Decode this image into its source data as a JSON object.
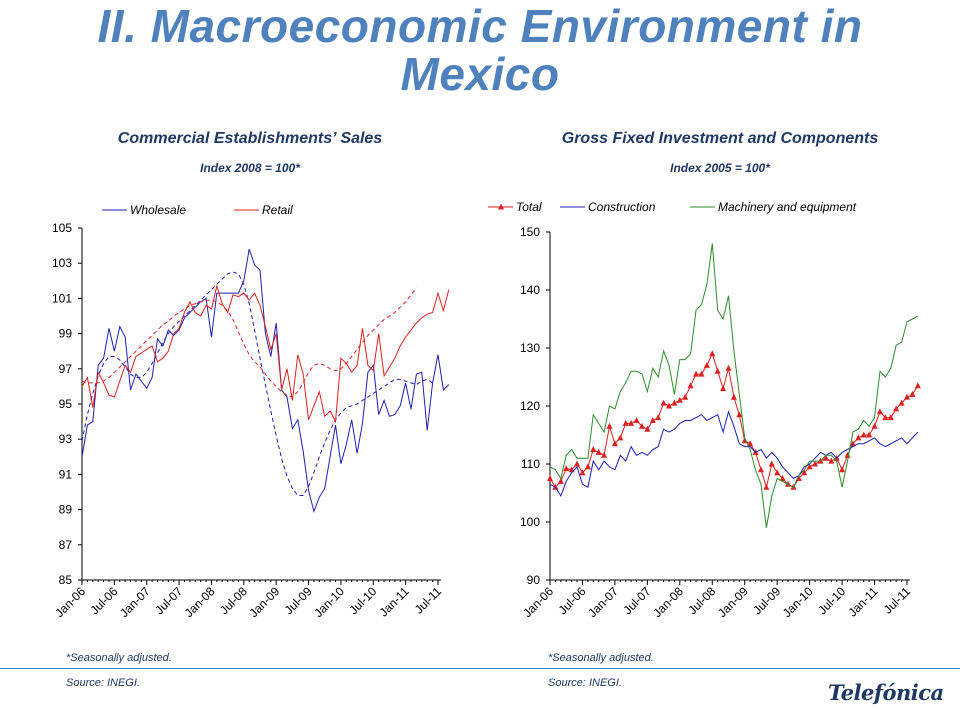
{
  "slide": {
    "title_line1": "II. Macroeconomic Environment in",
    "title_line2": "Mexico",
    "logo": "Telefónica"
  },
  "colors": {
    "title": "#4f81bd",
    "blue": "#1f1fb4",
    "red": "#e02020",
    "green": "#2e8b2e",
    "text": "#1f3864"
  },
  "left": {
    "title": "Commercial Establishments’ Sales",
    "subtitle": "Index 2008 = 100*",
    "note": "*Seasonally adjusted.",
    "source": "Source: INEGI."
  },
  "right": {
    "title": "Gross Fixed Investment and Components",
    "subtitle": "Index 2005 = 100*",
    "note": "*Seasonally adjusted.",
    "source": "Source: INEGI."
  },
  "chart_data": [
    {
      "type": "line",
      "title": "Commercial Establishments’ Sales",
      "subtitle": "Index 2008 = 100*",
      "ylim": [
        85,
        105
      ],
      "y_ticks": [
        85,
        87,
        89,
        91,
        93,
        95,
        97,
        99,
        101,
        103,
        105
      ],
      "x_tick_labels": [
        "Jan-06",
        "Jul-06",
        "Jan-07",
        "Jul-07",
        "Jan-08",
        "Jul-08",
        "Jan-09",
        "Jul-09",
        "Jan-10",
        "Jul-10",
        "Jan-11",
        "Jul-11"
      ],
      "x_start": "Jan-06",
      "frequency": "monthly",
      "legend_position": "top",
      "series": [
        {
          "name": "Wholesale",
          "color": "#1f1fb4",
          "values": [
            92.0,
            93.8,
            94.0,
            97.2,
            97.6,
            99.3,
            98.0,
            99.4,
            98.8,
            95.8,
            96.7,
            96.3,
            95.9,
            96.5,
            98.7,
            98.3,
            99.2,
            98.9,
            99.2,
            99.9,
            100.2,
            100.5,
            100.8,
            101.0,
            98.8,
            101.3,
            101.3,
            101.3,
            101.3,
            101.3,
            102.0,
            103.8,
            102.9,
            102.6,
            99.0,
            97.7,
            99.6,
            95.8,
            95.4,
            93.6,
            94.1,
            92.3,
            90.1,
            88.9,
            89.7,
            90.2,
            92.0,
            93.8,
            91.6,
            92.7,
            94.1,
            92.2,
            93.9,
            96.8,
            97.2,
            94.4,
            95.2,
            94.3,
            94.4,
            94.9,
            96.2,
            94.7,
            96.7,
            96.8,
            93.5,
            96.2,
            97.8,
            95.8,
            96.1
          ]
        },
        {
          "name": "Wholesale (trend)",
          "color": "#1f1fb4",
          "style": "dashed",
          "values": [
            92.9,
            94.4,
            95.6,
            96.6,
            97.3,
            97.7,
            97.7,
            97.5,
            97.1,
            96.7,
            96.5,
            96.5,
            96.8,
            97.3,
            97.9,
            98.5,
            99.0,
            99.4,
            99.7,
            100.0,
            100.3,
            100.6,
            100.9,
            101.2,
            101.5,
            101.8,
            102.1,
            102.4,
            102.5,
            102.4,
            101.8,
            100.7,
            99.2,
            97.6,
            96.1,
            94.6,
            93.2,
            91.9,
            90.9,
            90.2,
            89.8,
            89.8,
            90.3,
            91.1,
            92.0,
            92.8,
            93.5,
            94.1,
            94.5,
            94.8,
            94.9,
            95.0,
            95.2,
            95.4,
            95.6,
            95.8,
            96.0,
            96.2,
            96.4,
            96.4,
            96.3,
            96.2,
            96.1,
            96.3,
            96.4,
            96.2
          ]
        },
        {
          "name": "Retail",
          "color": "#e02020",
          "values": [
            96.0,
            96.5,
            94.8,
            96.8,
            96.2,
            95.5,
            95.4,
            96.3,
            97.2,
            96.8,
            97.7,
            97.9,
            98.1,
            98.3,
            97.4,
            97.6,
            98.0,
            99.0,
            99.3,
            100.2,
            100.8,
            100.2,
            100.0,
            100.6,
            100.4,
            101.7,
            100.7,
            100.2,
            101.2,
            101.1,
            101.3,
            100.9,
            101.3,
            100.6,
            99.4,
            98.1,
            99.0,
            95.8,
            97.0,
            95.2,
            97.8,
            96.7,
            94.1,
            94.9,
            95.7,
            94.3,
            94.6,
            94.0,
            97.6,
            97.3,
            96.8,
            97.2,
            99.3,
            97.2,
            96.9,
            99.0,
            96.6,
            97.1,
            97.6,
            98.3,
            98.8,
            99.2,
            99.6,
            99.9,
            100.1,
            100.2,
            101.3,
            100.3,
            101.5
          ]
        },
        {
          "name": "Retail (trend)",
          "color": "#e02020",
          "style": "dashed",
          "values": [
            96.3,
            96.2,
            96.2,
            96.2,
            96.3,
            96.5,
            96.8,
            97.1,
            97.4,
            97.7,
            98.0,
            98.3,
            98.6,
            98.9,
            99.2,
            99.5,
            99.7,
            100.0,
            100.2,
            100.4,
            100.6,
            100.7,
            100.8,
            100.9,
            100.9,
            100.8,
            100.6,
            100.3,
            99.8,
            99.1,
            98.4,
            97.8,
            97.4,
            97.1,
            96.7,
            96.3,
            96.0,
            95.7,
            95.5,
            95.4,
            95.7,
            96.2,
            96.8,
            97.2,
            97.3,
            97.2,
            97.0,
            96.9,
            97.0,
            97.3,
            97.7,
            98.1,
            98.5,
            98.9,
            99.2,
            99.5,
            99.8,
            100.0,
            100.2,
            100.5,
            100.8,
            101.2,
            101.6
          ]
        }
      ]
    },
    {
      "type": "line",
      "title": "Gross Fixed Investment and Components",
      "subtitle": "Index 2005 = 100*",
      "ylim": [
        90,
        150
      ],
      "y_ticks": [
        90,
        100,
        110,
        120,
        130,
        140,
        150
      ],
      "x_tick_labels": [
        "Jan-06",
        "Jul-06",
        "Jan-07",
        "Jul-07",
        "Jan-08",
        "Jul-08",
        "Jan-09",
        "Jul-09",
        "Jan-10",
        "Jul-10",
        "Jan-11",
        "Jul-11"
      ],
      "x_start": "Jan-06",
      "frequency": "monthly",
      "legend_position": "top",
      "series": [
        {
          "name": "Total",
          "color": "#e02020",
          "marker": "triangle",
          "values": [
            107.5,
            106.0,
            107.0,
            109.2,
            109.0,
            110.0,
            108.5,
            109.5,
            112.5,
            112.0,
            111.5,
            116.5,
            113.5,
            114.5,
            117.0,
            117.0,
            117.5,
            116.5,
            116.0,
            117.5,
            118.0,
            120.5,
            120.0,
            120.5,
            121.0,
            121.5,
            123.5,
            125.5,
            125.5,
            127.0,
            129.0,
            126.0,
            123.0,
            126.5,
            121.5,
            118.5,
            114.0,
            113.5,
            112.0,
            109.0,
            106.0,
            110.0,
            108.5,
            107.5,
            106.5,
            106.0,
            107.5,
            108.5,
            109.5,
            110.0,
            110.5,
            111.0,
            110.5,
            111.0,
            109.0,
            111.5,
            113.5,
            114.5,
            115.0,
            115.0,
            116.5,
            119.0,
            118.0,
            118.0,
            119.5,
            120.5,
            121.5,
            122.0,
            123.5
          ]
        },
        {
          "name": "Construction",
          "color": "#1f1fb4",
          "values": [
            106.5,
            106.0,
            104.5,
            107.0,
            108.5,
            109.5,
            106.5,
            106.0,
            110.5,
            109.0,
            110.5,
            109.5,
            109.0,
            111.5,
            110.5,
            113.0,
            111.5,
            112.0,
            111.5,
            112.5,
            113.0,
            116.0,
            115.5,
            116.0,
            117.0,
            117.5,
            117.5,
            118.0,
            118.5,
            117.5,
            118.0,
            118.5,
            115.5,
            119.0,
            116.5,
            113.5,
            113.0,
            113.0,
            112.0,
            112.5,
            111.0,
            112.0,
            111.0,
            109.5,
            108.5,
            107.5,
            108.0,
            109.5,
            110.0,
            111.0,
            112.0,
            111.5,
            112.0,
            111.0,
            112.0,
            112.5,
            113.0,
            113.5,
            113.5,
            114.0,
            114.5,
            113.5,
            113.0,
            113.5,
            114.0,
            114.5,
            113.5,
            114.5,
            115.5
          ]
        },
        {
          "name": "Machinery and equipment",
          "color": "#2e8b2e",
          "values": [
            109.5,
            109.0,
            107.5,
            111.5,
            112.5,
            111.0,
            111.0,
            111.0,
            118.5,
            117.0,
            115.5,
            120.0,
            119.5,
            122.5,
            124.0,
            126.0,
            126.0,
            125.5,
            122.5,
            126.5,
            125.0,
            129.5,
            127.0,
            122.0,
            128.0,
            128.0,
            129.0,
            136.5,
            137.5,
            141.0,
            148.0,
            136.5,
            135.0,
            139.0,
            129.5,
            122.0,
            114.5,
            112.5,
            109.0,
            106.5,
            99.0,
            104.5,
            107.5,
            107.0,
            106.5,
            106.0,
            108.0,
            109.0,
            110.5,
            110.5,
            110.5,
            111.5,
            111.5,
            110.5,
            106.0,
            110.5,
            115.5,
            116.0,
            117.5,
            116.5,
            118.0,
            126.0,
            125.0,
            126.5,
            130.5,
            131.0,
            134.5,
            135.0,
            135.5
          ]
        }
      ]
    }
  ]
}
